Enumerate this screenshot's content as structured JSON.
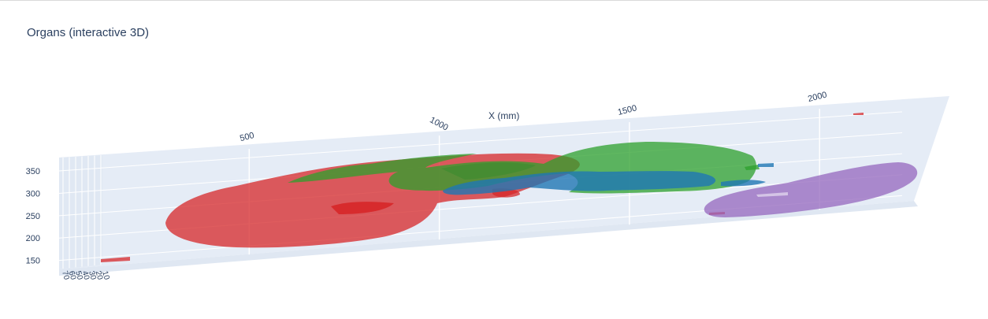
{
  "chart_data": {
    "type": "surface",
    "title": "Organs (interactive 3D)",
    "scene": {
      "xaxis": {
        "title": "X (mm)",
        "ticks": [
          500,
          1000,
          1500,
          2000
        ],
        "range": [
          0,
          2300
        ]
      },
      "yaxis": {
        "title": "",
        "tick_labels": [
          "10",
          "20",
          "30",
          "40",
          "50",
          "60",
          "70"
        ]
      },
      "zaxis": {
        "title": "",
        "ticks": [
          150,
          200,
          250,
          300,
          350
        ],
        "range": [
          130,
          380
        ]
      },
      "background_color": "#e5ecf6",
      "grid": true
    },
    "series": [
      {
        "color": "#d62728",
        "opacity": 0.75
      },
      {
        "color": "#2ca02c",
        "opacity": 0.75
      },
      {
        "color": "#1f77b4",
        "opacity": 0.8
      },
      {
        "color": "#9467bd",
        "opacity": 0.75
      }
    ],
    "legend": "none"
  }
}
